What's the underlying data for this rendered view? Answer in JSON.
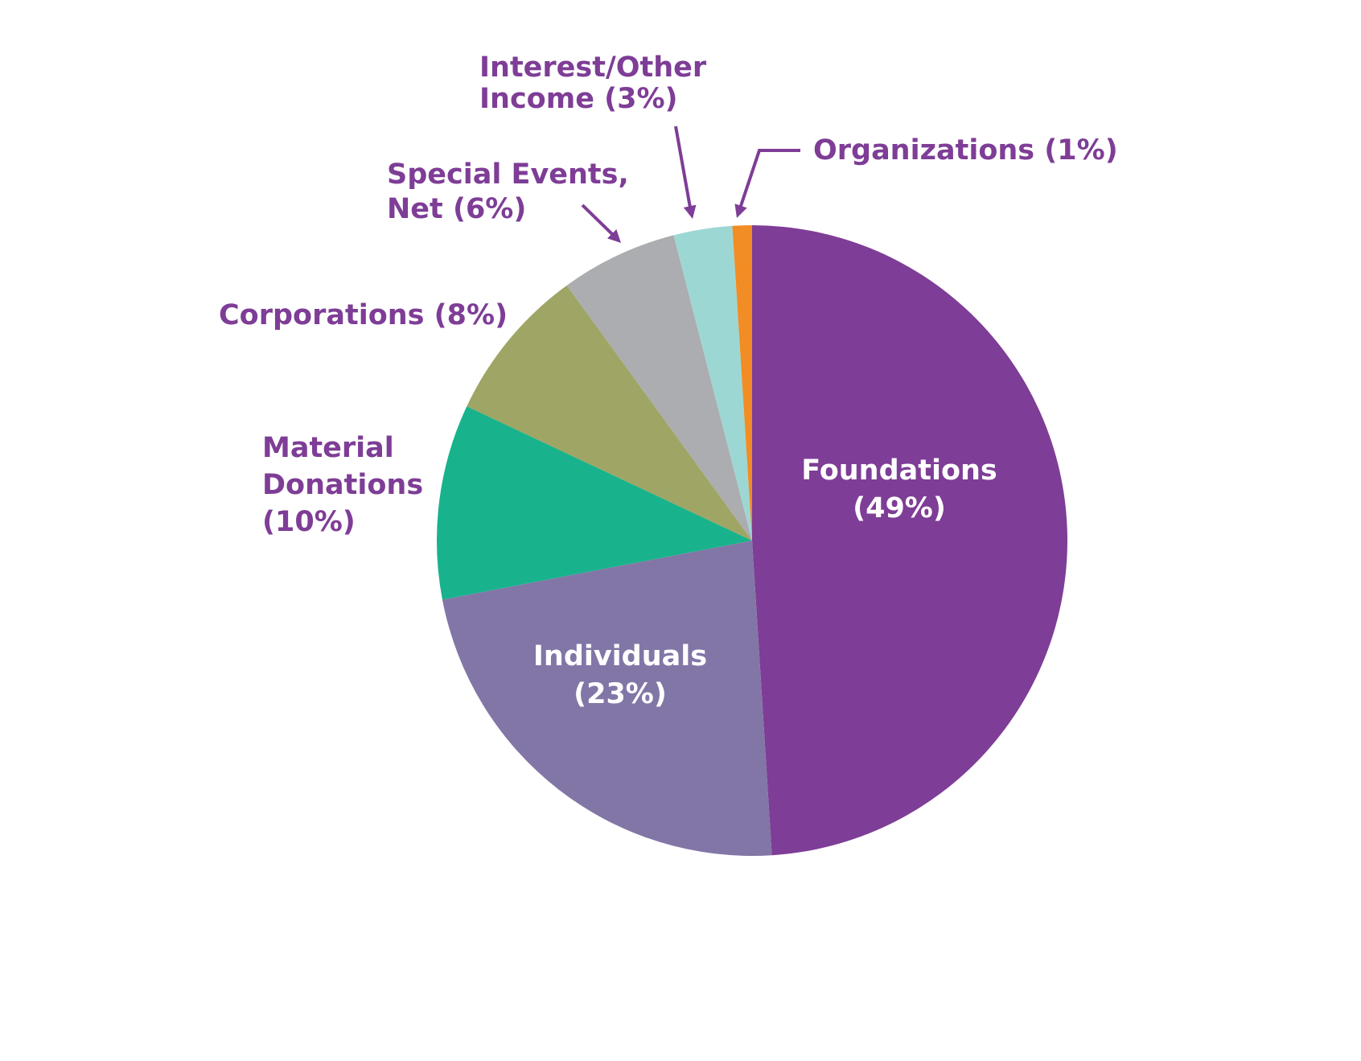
{
  "chart_data": {
    "type": "pie",
    "title": "",
    "start": "12 o'clock",
    "direction": "clockwise",
    "slices": [
      {
        "name": "Foundations",
        "value": 49,
        "color": "#7e3d96",
        "label_lines": [
          "Foundations",
          "(49%)"
        ],
        "label_style": "inside"
      },
      {
        "name": "Individuals",
        "value": 23,
        "color": "#8276a7",
        "label_lines": [
          "Individuals",
          "(23%)"
        ],
        "label_style": "inside"
      },
      {
        "name": "Material Donations",
        "value": 10,
        "color": "#18b38c",
        "label_lines": [
          "Material",
          "Donations",
          "(10%)"
        ],
        "label_style": "outside"
      },
      {
        "name": "Corporations",
        "value": 8,
        "color": "#9fa564",
        "label_lines": [
          "Corporations (8%)"
        ],
        "label_style": "outside"
      },
      {
        "name": "Special Events, Net",
        "value": 6,
        "color": "#acadb0",
        "label_lines": [
          "Special Events,",
          "Net (6%)"
        ],
        "label_style": "outside-arrow"
      },
      {
        "name": "Interest/Other Income",
        "value": 3,
        "color": "#9dd7d4",
        "label_lines": [
          "Interest/Other",
          "Income (3%)"
        ],
        "label_style": "outside-arrow"
      },
      {
        "name": "Organizations",
        "value": 1,
        "color": "#f28c24",
        "label_lines": [
          "Organizations (1%)"
        ],
        "label_style": "outside-arrow"
      }
    ]
  }
}
